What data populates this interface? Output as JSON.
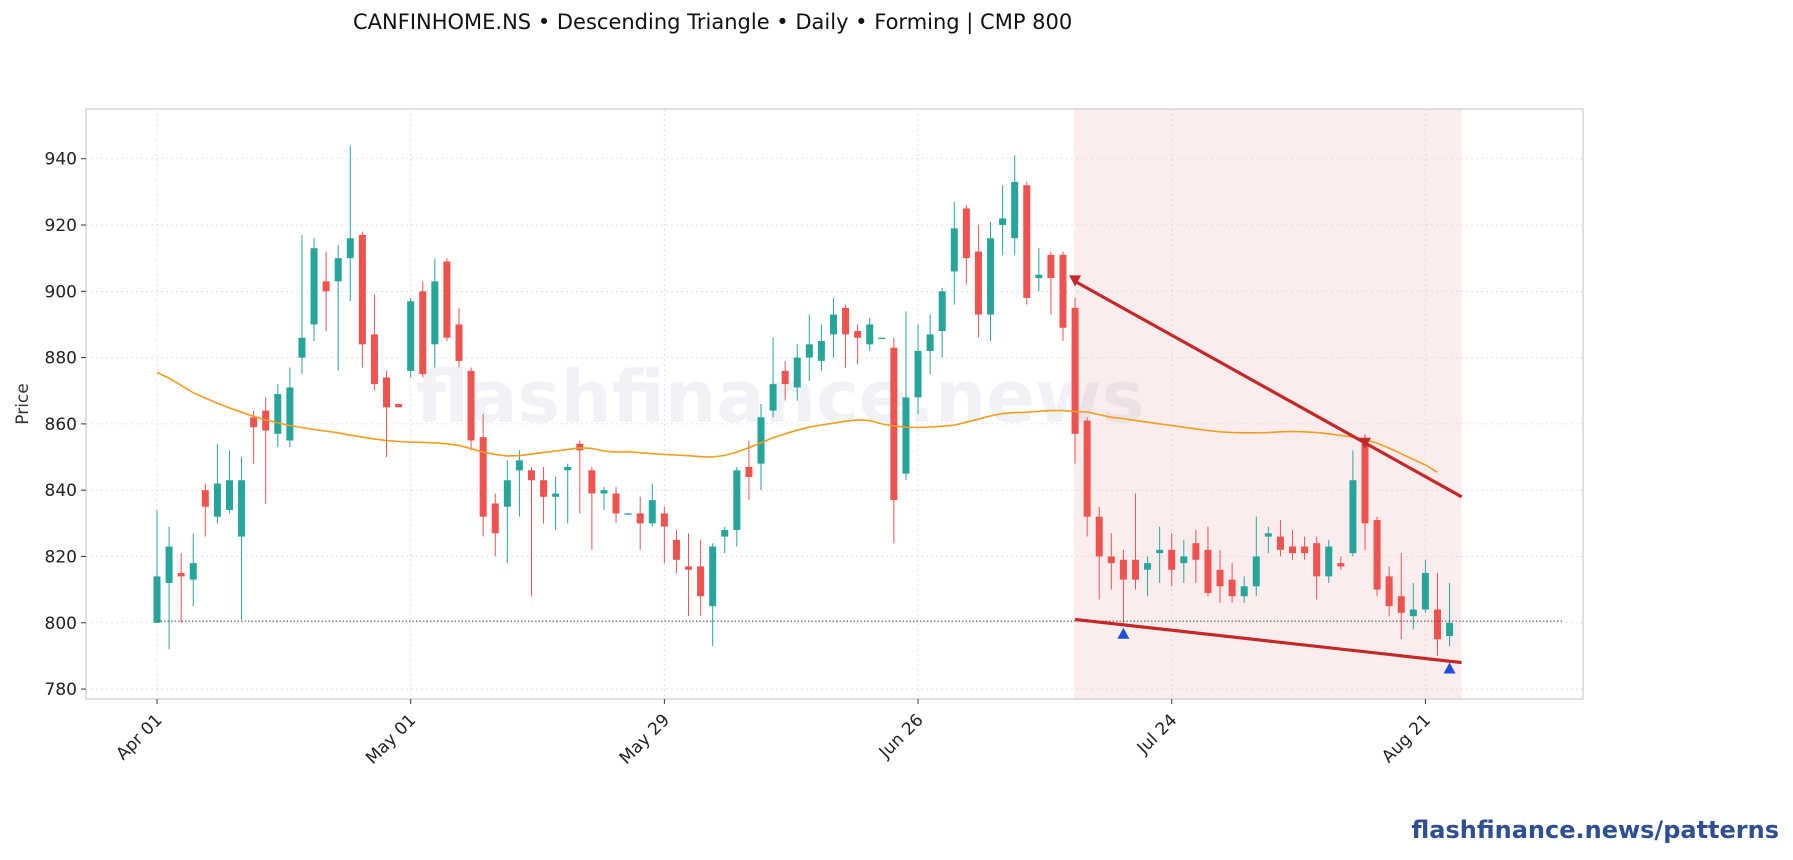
{
  "title": "CANFINHOME.NS  •  Descending Triangle  •  Daily  •  Forming  |  CMP 800",
  "watermark": "flashfinance.news",
  "brand": "flashfinance.news/patterns",
  "chart_data": {
    "type": "candlestick",
    "ylabel": "Price",
    "xlabel": "",
    "ylim": [
      777,
      955
    ],
    "yticks": [
      780,
      800,
      820,
      840,
      860,
      880,
      900,
      920,
      940
    ],
    "xticks": [
      {
        "label": "Apr 01",
        "index": 0
      },
      {
        "label": "May 01",
        "index": 21
      },
      {
        "label": "May 29",
        "index": 42
      },
      {
        "label": "Jun 26",
        "index": 63
      },
      {
        "label": "Jul 24",
        "index": 84
      },
      {
        "label": "Aug 21",
        "index": 105
      }
    ],
    "grid": true,
    "colors": {
      "up": "#26a69a",
      "down": "#ef5350",
      "ma": "#f59c1a",
      "trend": "#c62828",
      "highlight": "#f6d3d3",
      "low_marker": "#1f4ed8",
      "high_marker": "#c62828"
    },
    "candles": [
      [
        800,
        814,
        800,
        834
      ],
      [
        812,
        823,
        792,
        829
      ],
      [
        815,
        814,
        800,
        821
      ],
      [
        813,
        818,
        805,
        827
      ],
      [
        840,
        835,
        826,
        842
      ],
      [
        832,
        842,
        830,
        854
      ],
      [
        834,
        843,
        833,
        852
      ],
      [
        826,
        843,
        801,
        850
      ],
      [
        862,
        859,
        848,
        864
      ],
      [
        864,
        858,
        836,
        868
      ],
      [
        857,
        869,
        853,
        872
      ],
      [
        855,
        871,
        853,
        877
      ],
      [
        880,
        886,
        875,
        917
      ],
      [
        890,
        913,
        885,
        916
      ],
      [
        903,
        900,
        888,
        912
      ],
      [
        903,
        910,
        876,
        914
      ],
      [
        910,
        916,
        897,
        944
      ],
      [
        917,
        884,
        877,
        918
      ],
      [
        887,
        872,
        870,
        899
      ],
      [
        874,
        865,
        850,
        876
      ],
      [
        866,
        865,
        865,
        866
      ],
      [
        876,
        897,
        874,
        898
      ],
      [
        900,
        875,
        874,
        903
      ],
      [
        884,
        903,
        877,
        910
      ],
      [
        909,
        886,
        885,
        910
      ],
      [
        890,
        879,
        877,
        895
      ],
      [
        876,
        855,
        852,
        877
      ],
      [
        856,
        832,
        826,
        863
      ],
      [
        836,
        827,
        820,
        839
      ],
      [
        835,
        843,
        818,
        849
      ],
      [
        846,
        849,
        832,
        852
      ],
      [
        846,
        843,
        808,
        847
      ],
      [
        843,
        838,
        830,
        847
      ],
      [
        838,
        839,
        828,
        844
      ],
      [
        846,
        847,
        830,
        848
      ],
      [
        854,
        852,
        833,
        855
      ],
      [
        846,
        839,
        822,
        847
      ],
      [
        839,
        840,
        834,
        841
      ],
      [
        839,
        833,
        830,
        841
      ],
      [
        833,
        833,
        833,
        833
      ],
      [
        833,
        830,
        822,
        838
      ],
      [
        830,
        837,
        829,
        842
      ],
      [
        833,
        829,
        818,
        835
      ],
      [
        825,
        819,
        815,
        828
      ],
      [
        817,
        816,
        802,
        827
      ],
      [
        817,
        808,
        802,
        825
      ],
      [
        805,
        823,
        793,
        824
      ],
      [
        826,
        828,
        821,
        829
      ],
      [
        828,
        846,
        823,
        847
      ],
      [
        847,
        844,
        837,
        855
      ],
      [
        848,
        862,
        840,
        866
      ],
      [
        864,
        872,
        862,
        886
      ],
      [
        876,
        872,
        867,
        879
      ],
      [
        871,
        880,
        867,
        884
      ],
      [
        880,
        884,
        873,
        893
      ],
      [
        879,
        885,
        876,
        890
      ],
      [
        887,
        893,
        880,
        898
      ],
      [
        895,
        887,
        877,
        896
      ],
      [
        888,
        886,
        878,
        890
      ],
      [
        884,
        890,
        882,
        892
      ],
      [
        886,
        886,
        886,
        886
      ],
      [
        883,
        837,
        824,
        886
      ],
      [
        845,
        868,
        843,
        894
      ],
      [
        868,
        882,
        863,
        890
      ],
      [
        882,
        887,
        875,
        893
      ],
      [
        888,
        900,
        880,
        901
      ],
      [
        906,
        919,
        896,
        927
      ],
      [
        925,
        910,
        902,
        926
      ],
      [
        912,
        893,
        886,
        920
      ],
      [
        893,
        916,
        885,
        921
      ],
      [
        920,
        922,
        911,
        932
      ],
      [
        916,
        933,
        911,
        941
      ],
      [
        932,
        898,
        896,
        933
      ],
      [
        904,
        905,
        900,
        913
      ],
      [
        911,
        904,
        893,
        912
      ],
      [
        911,
        889,
        885,
        912
      ],
      [
        895,
        857,
        848,
        898
      ],
      [
        861,
        832,
        826,
        862
      ],
      [
        832,
        820,
        807,
        835
      ],
      [
        820,
        818,
        810,
        827
      ],
      [
        819,
        813,
        800,
        822
      ],
      [
        819,
        813,
        810,
        839
      ],
      [
        816,
        818,
        808,
        820
      ],
      [
        821,
        822,
        812,
        829
      ],
      [
        822,
        816,
        811,
        827
      ],
      [
        818,
        820,
        812,
        825
      ],
      [
        824,
        819,
        812,
        828
      ],
      [
        822,
        809,
        808,
        829
      ],
      [
        816,
        811,
        806,
        822
      ],
      [
        813,
        808,
        806,
        818
      ],
      [
        808,
        811,
        806,
        814
      ],
      [
        811,
        820,
        808,
        832
      ],
      [
        826,
        827,
        821,
        829
      ],
      [
        826,
        822,
        820,
        831
      ],
      [
        823,
        821,
        819,
        828
      ],
      [
        823,
        821,
        819,
        826
      ],
      [
        824,
        814,
        807,
        826
      ],
      [
        814,
        823,
        812,
        825
      ],
      [
        818,
        817,
        816,
        820
      ],
      [
        821,
        843,
        820,
        852
      ],
      [
        854,
        830,
        822,
        857
      ],
      [
        831,
        810,
        808,
        832
      ],
      [
        814,
        805,
        802,
        817
      ],
      [
        808,
        803,
        795,
        821
      ],
      [
        802,
        804,
        798,
        812
      ],
      [
        804,
        815,
        803,
        819
      ],
      [
        804,
        795,
        790,
        815
      ],
      [
        796,
        800,
        793,
        812
      ]
    ],
    "moving_average": [
      875.5,
      873.8,
      871.6,
      869.4,
      867.8,
      866.2,
      864.8,
      863.5,
      862.3,
      861.2,
      860.3,
      859.5,
      858.9,
      858.3,
      857.8,
      857.3,
      856.6,
      856.0,
      855.4,
      855.0,
      854.7,
      854.5,
      854.4,
      854.3,
      854.0,
      853.5,
      852.5,
      851.5,
      850.8,
      850.3,
      850.4,
      850.9,
      851.4,
      851.8,
      852.3,
      852.8,
      852.6,
      851.8,
      851.5,
      851.6,
      851.3,
      851.0,
      850.8,
      850.6,
      850.4,
      850.1,
      850.0,
      850.5,
      851.5,
      852.8,
      854.3,
      855.8,
      857.0,
      858.1,
      859.0,
      859.7,
      860.2,
      860.8,
      861.2,
      861.0,
      860.0,
      859.4,
      859.0,
      858.9,
      859.0,
      859.3,
      859.6,
      860.5,
      861.4,
      862.4,
      863.1,
      863.4,
      863.5,
      863.8,
      864.0,
      864.0,
      863.7,
      863.6,
      862.8,
      862.0,
      861.6,
      861.0,
      860.5,
      860.0,
      859.5,
      859.0,
      858.5,
      858.0,
      857.6,
      857.4,
      857.3,
      857.3,
      857.4,
      857.6,
      857.7,
      857.6,
      857.4,
      857.0,
      856.5,
      856.0,
      855.3,
      854.2,
      852.7,
      851.0,
      849.3,
      847.6,
      845.4
    ],
    "pattern": {
      "name": "Descending Triangle",
      "status": "Forming",
      "start_index": 76,
      "end_index": 108,
      "upper_trendline": [
        [
          76,
          903
        ],
        [
          108,
          838
        ]
      ],
      "lower_trendline": [
        [
          76,
          801
        ],
        [
          108,
          788
        ]
      ],
      "support_level": 800.5,
      "high_markers": [
        [
          76,
          903
        ],
        [
          100,
          854
        ]
      ],
      "low_markers": [
        [
          80,
          797
        ],
        [
          107,
          786.5
        ]
      ]
    }
  }
}
